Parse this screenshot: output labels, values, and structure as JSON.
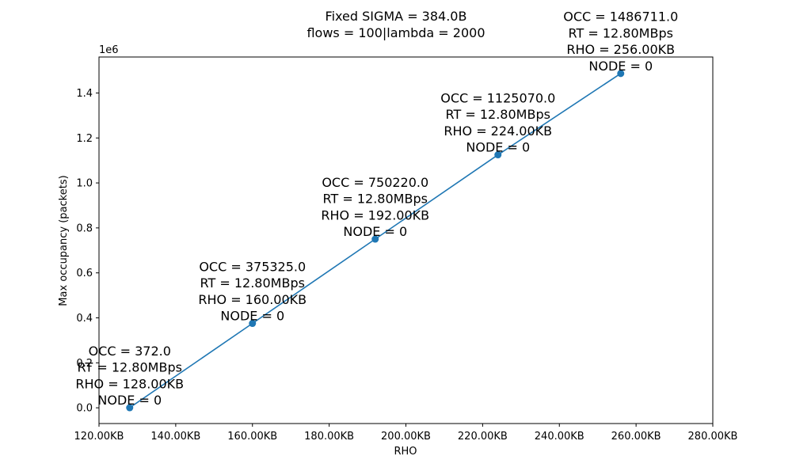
{
  "chart_data": {
    "type": "line",
    "title_lines": [
      "Fixed SIGMA = 384.0B",
      "flows = 100|lambda = 2000"
    ],
    "xlabel": "RHO",
    "ylabel": "Max occupancy (packets)",
    "y_offset_label": "1e6",
    "xlim": [
      120,
      280
    ],
    "ylim": [
      -70000,
      1560000
    ],
    "x_ticks": [
      120,
      140,
      160,
      180,
      200,
      220,
      240,
      260,
      280
    ],
    "x_tick_labels": [
      "120.00KB",
      "140.00KB",
      "160.00KB",
      "180.00KB",
      "200.00KB",
      "220.00KB",
      "240.00KB",
      "260.00KB",
      "280.00KB"
    ],
    "y_ticks": [
      0,
      200000,
      400000,
      600000,
      800000,
      1000000,
      1200000,
      1400000
    ],
    "y_tick_labels": [
      "0.0",
      "0.2",
      "0.4",
      "0.6",
      "0.8",
      "1.0",
      "1.2",
      "1.4"
    ],
    "grid": false,
    "series": [
      {
        "color": "#1f77b4",
        "x": [
          128,
          160,
          192,
          224,
          256
        ],
        "y": [
          372.0,
          375325.0,
          750220.0,
          1125070.0,
          1486711.0
        ]
      }
    ],
    "annotations": [
      {
        "lines": [
          "OCC = 372.0",
          "RT = 12.80MBps",
          "RHO = 128.00KB",
          "NODE = 0"
        ]
      },
      {
        "lines": [
          "OCC = 375325.0",
          "RT = 12.80MBps",
          "RHO = 160.00KB",
          "NODE = 0"
        ]
      },
      {
        "lines": [
          "OCC = 750220.0",
          "RT = 12.80MBps",
          "RHO = 192.00KB",
          "NODE = 0"
        ]
      },
      {
        "lines": [
          "OCC = 1125070.0",
          "RT = 12.80MBps",
          "RHO = 224.00KB",
          "NODE = 0"
        ]
      },
      {
        "lines": [
          "OCC = 1486711.0",
          "RT = 12.80MBps",
          "RHO = 256.00KB",
          "NODE = 0"
        ]
      }
    ]
  }
}
